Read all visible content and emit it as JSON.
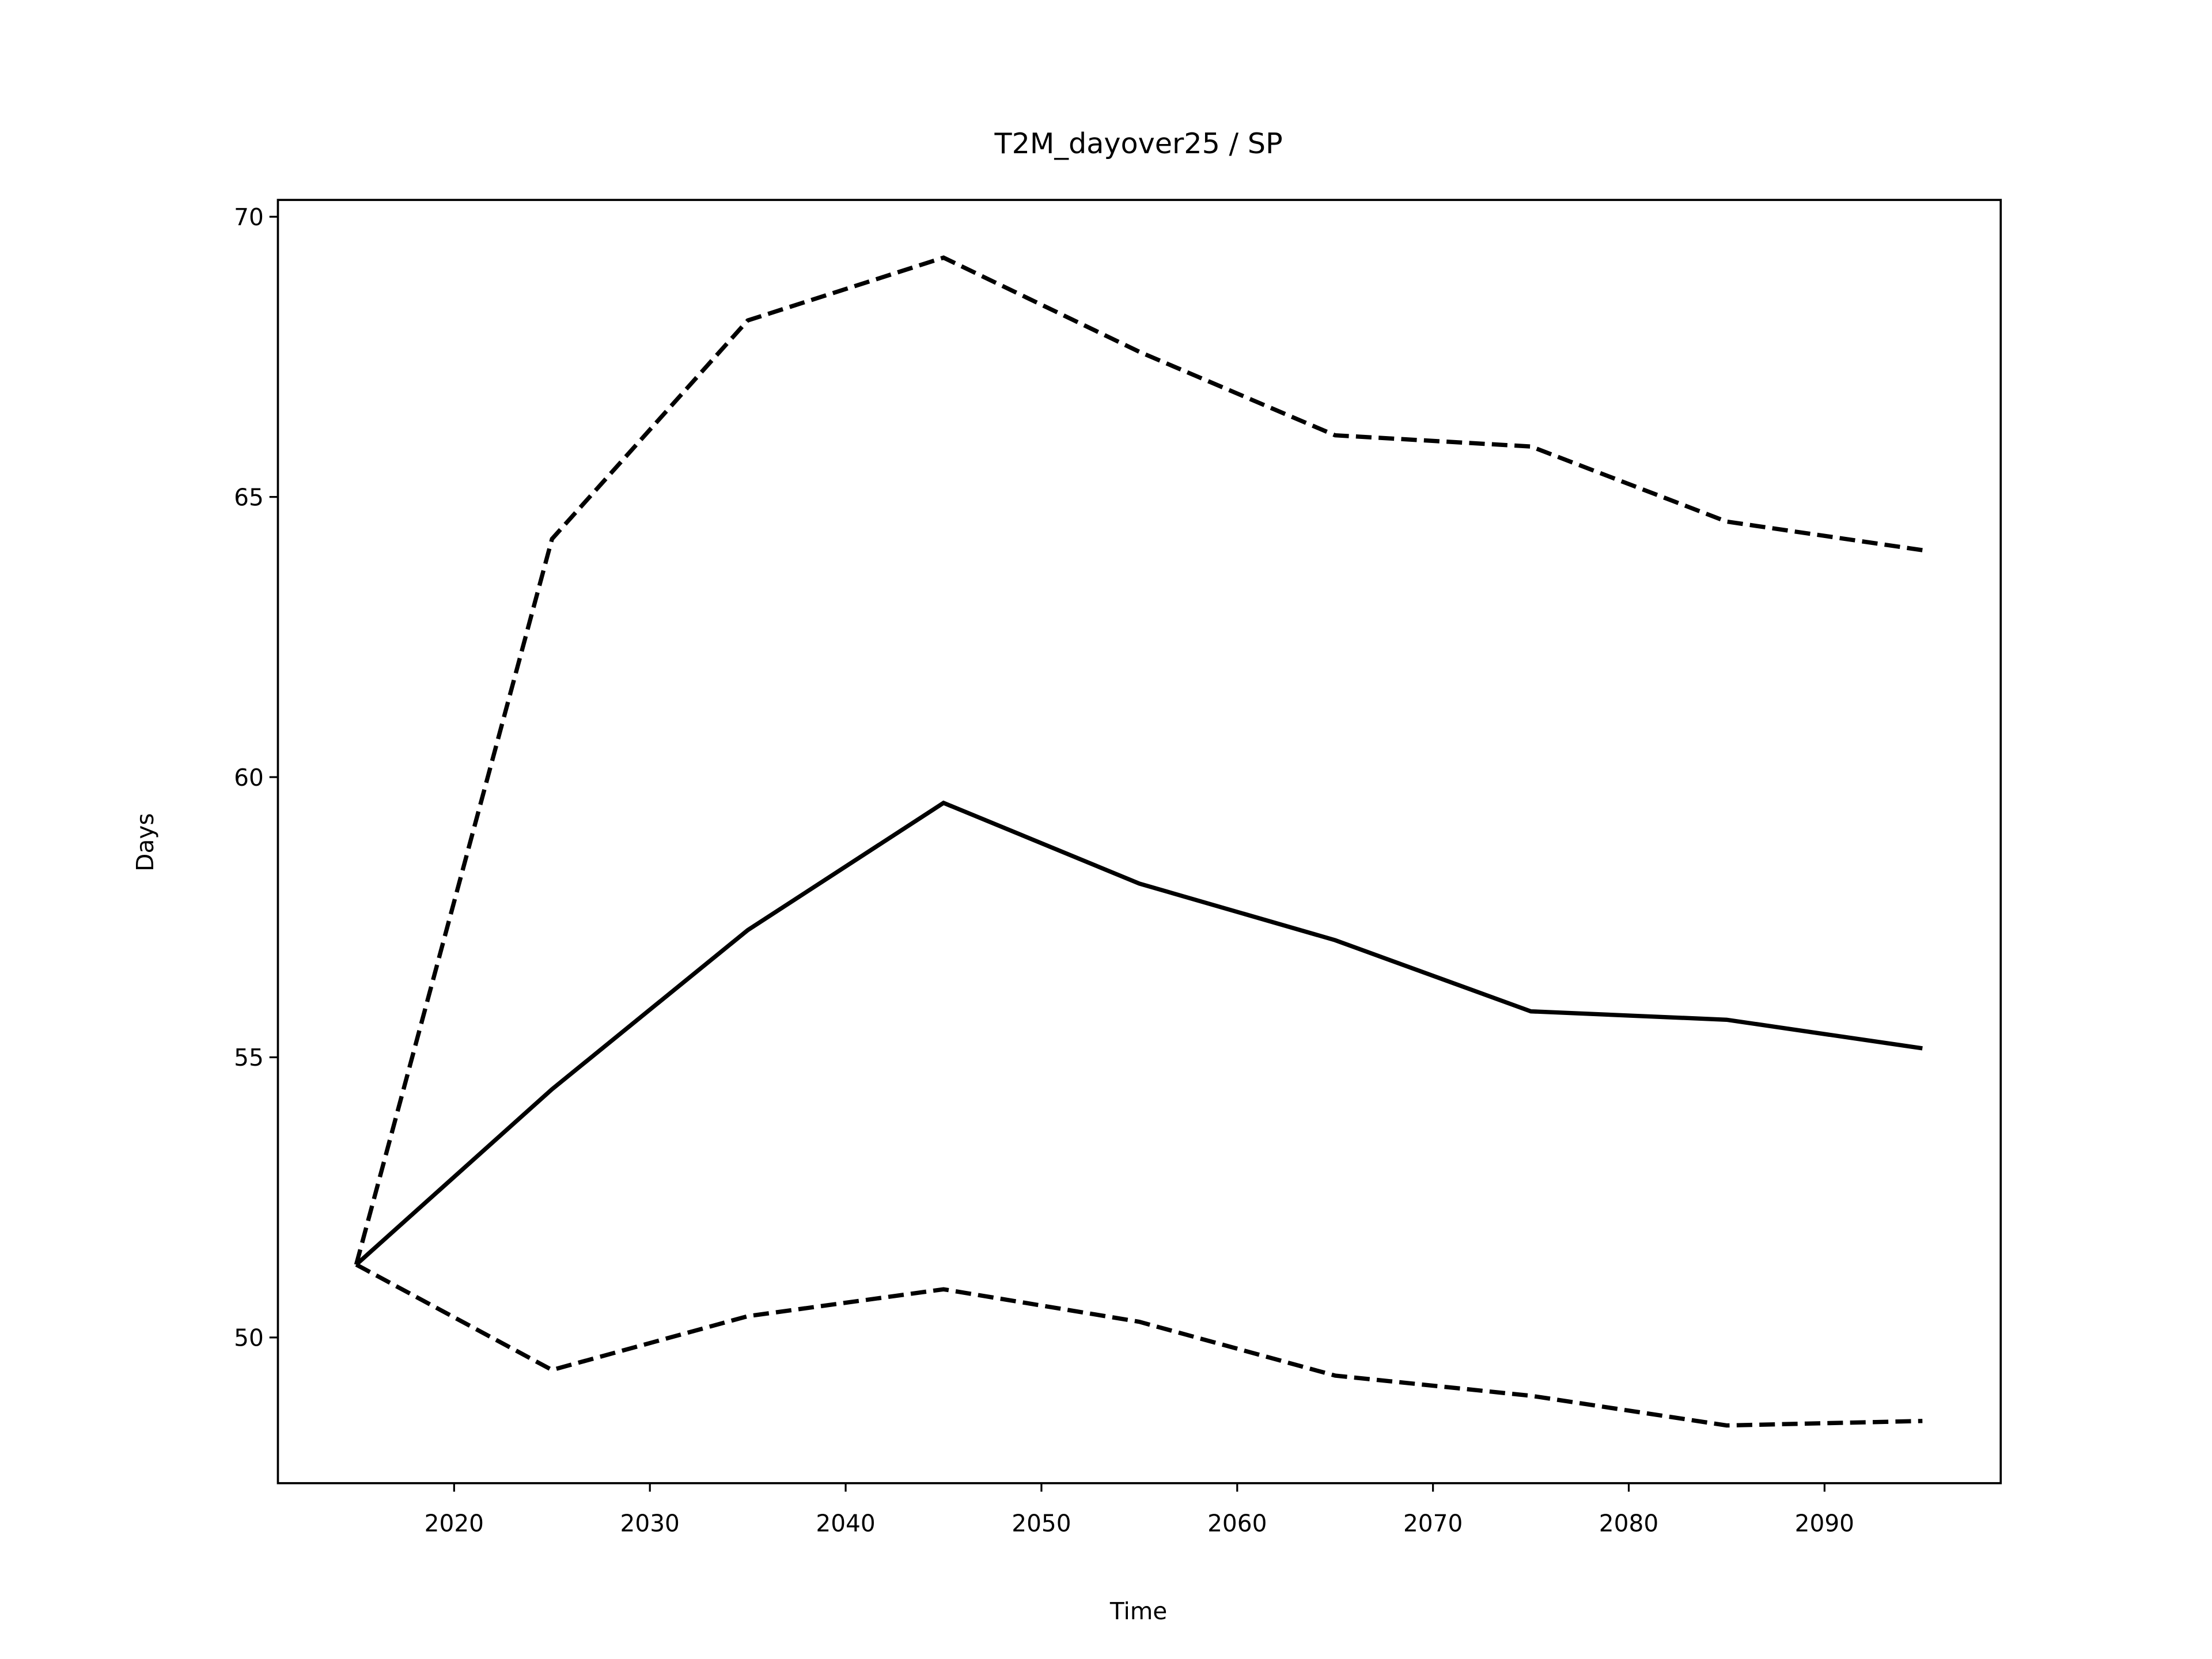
{
  "chart_data": {
    "type": "line",
    "title": "T2M_dayover25 / SP",
    "x_label": "Time",
    "y_label": "Days",
    "x": [
      2015,
      2025,
      2035,
      2045,
      2055,
      2065,
      2075,
      2085,
      2095
    ],
    "series": [
      {
        "color": "#000000",
        "linestyle": "dashed",
        "values": [
          51.3,
          64.25,
          68.15,
          69.27,
          67.59,
          66.1,
          65.9,
          64.56,
          64.05
        ]
      },
      {
        "color": "#000000",
        "linestyle": "solid",
        "values": [
          51.3,
          54.43,
          57.27,
          59.54,
          58.1,
          57.09,
          55.82,
          55.67,
          55.16
        ]
      },
      {
        "color": "#000000",
        "linestyle": "dashed",
        "values": [
          51.3,
          49.42,
          50.38,
          50.86,
          50.28,
          49.32,
          48.96,
          48.43,
          48.51
        ]
      }
    ],
    "xlim": [
      2011,
      2099
    ],
    "ylim": [
      47.4,
      70.3
    ],
    "xticks": [
      2020,
      2030,
      2040,
      2050,
      2060,
      2070,
      2080,
      2090
    ],
    "yticks": [
      50,
      55,
      60,
      65,
      70
    ],
    "grid": false
  }
}
